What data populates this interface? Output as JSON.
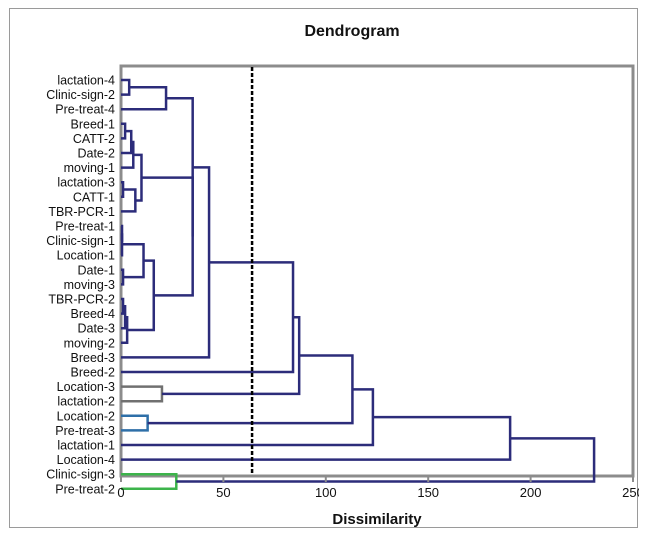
{
  "chart_data": {
    "type": "dendrogram",
    "title": "Dendrogram",
    "xlabel": "Dissimilarity",
    "xlim": [
      0,
      250
    ],
    "x_ticks": [
      0,
      50,
      100,
      150,
      200,
      250
    ],
    "cut_line": 64,
    "grid": false,
    "colors": {
      "main": "#2c2c7a",
      "gray": "#707070",
      "blue": "#2e6fa8",
      "green": "#3cb44b",
      "axis": "#8c8c8c",
      "cut_line": "#000000"
    },
    "leaves": [
      "lactation-4",
      "Clinic-sign-2",
      "Pre-treat-4",
      "Breed-1",
      "CATT-2",
      "Date-2",
      "moving-1",
      "lactation-3",
      "CATT-1",
      "TBR-PCR-1",
      "Pre-treat-1",
      "Clinic-sign-1",
      "Location-1",
      "Date-1",
      "moving-3",
      "TBR-PCR-2",
      "Breed-4",
      "Date-3",
      "moving-2",
      "Breed-3",
      "Breed-2",
      "Location-3",
      "lactation-2",
      "Location-2",
      "Pre-treat-3",
      "lactation-1",
      "Location-4",
      "Clinic-sign-3",
      "Pre-treat-2"
    ],
    "merges": [
      {
        "id": "m1",
        "a": "L0",
        "b": "L1",
        "height": 4,
        "color": "main"
      },
      {
        "id": "m2",
        "a": "m1",
        "b": "L2",
        "height": 22,
        "color": "main"
      },
      {
        "id": "m3",
        "a": "L3",
        "b": "L4",
        "height": 2,
        "color": "main"
      },
      {
        "id": "m4",
        "a": "m3",
        "b": "L5",
        "height": 5,
        "color": "main"
      },
      {
        "id": "m5",
        "a": "m4",
        "b": "L6",
        "height": 6,
        "color": "main"
      },
      {
        "id": "m6",
        "a": "L7",
        "b": "L8",
        "height": 1,
        "color": "main"
      },
      {
        "id": "m7",
        "a": "m6",
        "b": "L9",
        "height": 7,
        "color": "main"
      },
      {
        "id": "m8",
        "a": "m5",
        "b": "m7",
        "height": 10,
        "color": "main"
      },
      {
        "id": "m9",
        "a": "L10",
        "b": "L11",
        "height": 0.5,
        "color": "main"
      },
      {
        "id": "m10",
        "a": "m9",
        "b": "L12",
        "height": 0.5,
        "color": "main"
      },
      {
        "id": "m11",
        "a": "L13",
        "b": "L14",
        "height": 1,
        "color": "main"
      },
      {
        "id": "m12",
        "a": "m10",
        "b": "m11",
        "height": 11,
        "color": "main"
      },
      {
        "id": "m13",
        "a": "L15",
        "b": "L16",
        "height": 1,
        "color": "main"
      },
      {
        "id": "m14",
        "a": "m13",
        "b": "L17",
        "height": 2,
        "color": "main"
      },
      {
        "id": "m15",
        "a": "m14",
        "b": "L18",
        "height": 3,
        "color": "main"
      },
      {
        "id": "m16",
        "a": "m12",
        "b": "m15",
        "height": 16,
        "color": "main"
      },
      {
        "id": "m17",
        "a": "m8",
        "b": "m16",
        "height": 35,
        "color": "main"
      },
      {
        "id": "m18",
        "a": "m2",
        "b": "m17",
        "height": 35,
        "color": "main"
      },
      {
        "id": "m19",
        "a": "m18",
        "b": "L19",
        "height": 43,
        "color": "main"
      },
      {
        "id": "m20",
        "a": "m19",
        "b": "L20",
        "height": 84,
        "color": "main"
      },
      {
        "id": "m21",
        "a": "L21",
        "b": "L22",
        "height": 20,
        "color": "gray"
      },
      {
        "id": "m22",
        "a": "m20",
        "b": "m21",
        "height": 87,
        "color": "main"
      },
      {
        "id": "m23",
        "a": "L23",
        "b": "L24",
        "height": 13,
        "color": "blue"
      },
      {
        "id": "m24",
        "a": "m22",
        "b": "m23",
        "height": 113,
        "color": "main"
      },
      {
        "id": "m25",
        "a": "m24",
        "b": "L25",
        "height": 123,
        "color": "main"
      },
      {
        "id": "m26",
        "a": "m25",
        "b": "L26",
        "height": 190,
        "color": "main"
      },
      {
        "id": "m27",
        "a": "L27",
        "b": "L28",
        "height": 27,
        "color": "green"
      },
      {
        "id": "m28",
        "a": "m26",
        "b": "m27",
        "height": 231,
        "color": "main"
      }
    ]
  }
}
